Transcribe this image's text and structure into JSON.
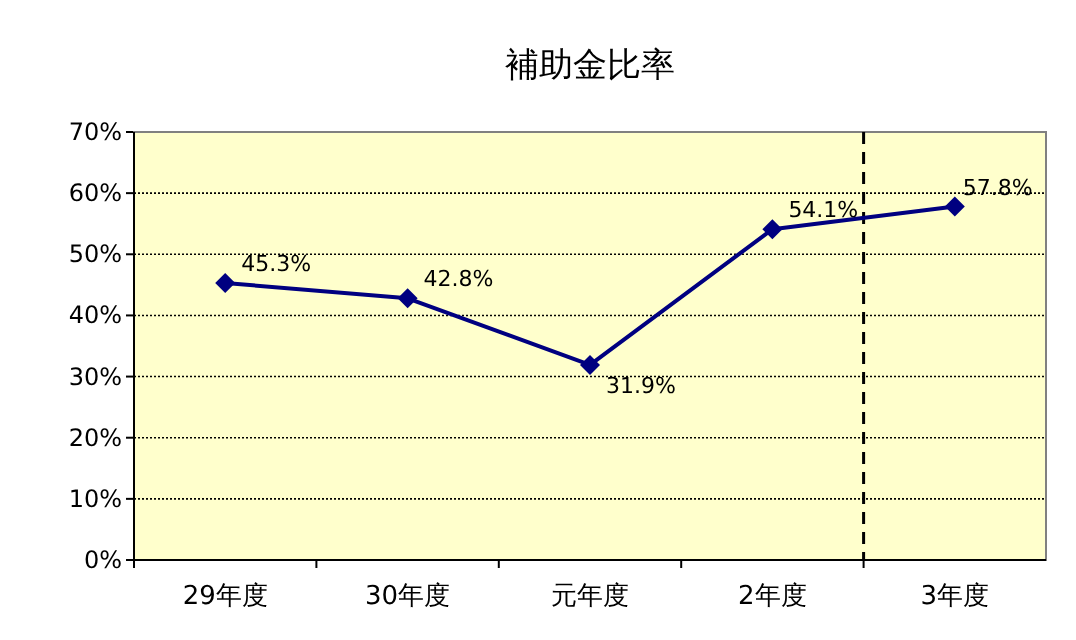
{
  "chart_data": {
    "type": "line",
    "title": "補助金比率",
    "categories": [
      "29年度",
      "30年度",
      "元年度",
      "2年度",
      "3年度"
    ],
    "series": [
      {
        "color": "#000080",
        "values": [
          45.3,
          42.8,
          31.9,
          54.1,
          57.8
        ],
        "value_labels": [
          "45.3%",
          "42.8%",
          "31.9%",
          "54.1%",
          "57.8%"
        ]
      }
    ],
    "ylim": [
      0,
      70
    ],
    "yticks": [
      {
        "value": 0,
        "label": "0%"
      },
      {
        "value": 10,
        "label": "10%"
      },
      {
        "value": 20,
        "label": "20%"
      },
      {
        "value": 30,
        "label": "30%"
      },
      {
        "value": 40,
        "label": "40%"
      },
      {
        "value": 50,
        "label": "50%"
      },
      {
        "value": 60,
        "label": "60%"
      },
      {
        "value": 70,
        "label": "70%"
      }
    ],
    "grid": "y",
    "marker": "diamond",
    "line_style": "solid"
  }
}
